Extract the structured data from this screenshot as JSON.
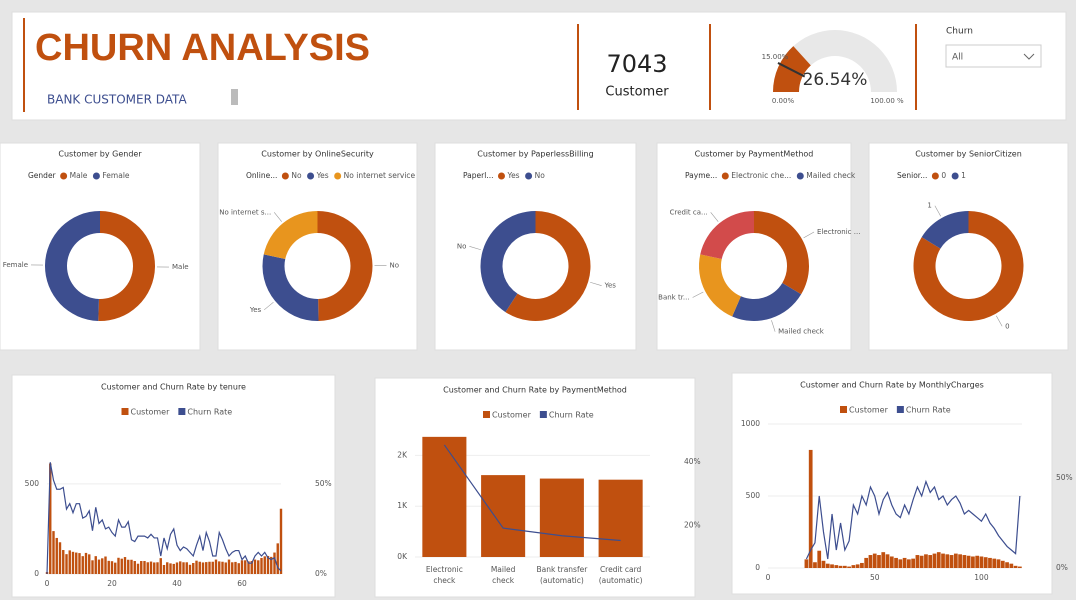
{
  "header": {
    "title": "CHURN ANALYSIS",
    "subtitle": "BANK CUSTOMER DATA",
    "kpi_value": "7043",
    "kpi_label": "Customer",
    "gauge": {
      "value": 26.54,
      "value_label": "26.54%",
      "min": 0,
      "min_label": "0.00%",
      "max": 100,
      "max_label": "100.00 %",
      "target": 15,
      "target_label": "15.00%",
      "color": "#c0500f"
    },
    "slicer": {
      "label": "Churn",
      "selected": "All"
    }
  },
  "chart_data": [
    {
      "type": "pie",
      "title": "Customer by Gender",
      "legend_title": "Gender",
      "legend_entries": [
        "Male",
        "Female"
      ],
      "categories": [
        "Male",
        "Female"
      ],
      "values": [
        50.5,
        49.5
      ],
      "colors": [
        "#c0500f",
        "#3d4e8f"
      ]
    },
    {
      "type": "pie",
      "title": "Customer by OnlineSecurity",
      "legend_title": "Online...",
      "legend_entries": [
        "No",
        "Yes",
        "No internet service"
      ],
      "categories": [
        "No",
        "Yes",
        "No internet s..."
      ],
      "values": [
        49.7,
        28.7,
        21.6
      ],
      "colors": [
        "#c0500f",
        "#3d4e8f",
        "#e8951e"
      ]
    },
    {
      "type": "pie",
      "title": "Customer by PaperlessBilling",
      "legend_title": "Paperl...",
      "legend_entries": [
        "Yes",
        "No"
      ],
      "categories": [
        "Yes",
        "No"
      ],
      "values": [
        59.2,
        40.8
      ],
      "colors": [
        "#c0500f",
        "#3d4e8f"
      ]
    },
    {
      "type": "pie",
      "title": "Customer by PaymentMethod",
      "legend_title": "Payme...",
      "legend_entries": [
        "Electronic che...",
        "Mailed check"
      ],
      "categories": [
        "Electronic ...",
        "Mailed check",
        "Bank tr...",
        "Credit ca..."
      ],
      "values": [
        33.6,
        22.9,
        21.9,
        21.6
      ],
      "colors": [
        "#c0500f",
        "#3d4e8f",
        "#e8951e",
        "#d24b4b"
      ]
    },
    {
      "type": "pie",
      "title": "Customer by SeniorCitizen",
      "legend_title": "Senior...",
      "legend_entries": [
        "0",
        "1"
      ],
      "categories": [
        "0",
        "1"
      ],
      "values": [
        83.8,
        16.2
      ],
      "colors": [
        "#c0500f",
        "#3d4e8f"
      ]
    },
    {
      "type": "combo",
      "title": "Customer and Churn Rate by tenure",
      "x": [
        0,
        1,
        2,
        3,
        4,
        5,
        6,
        7,
        8,
        9,
        10,
        11,
        12,
        13,
        14,
        15,
        16,
        17,
        18,
        19,
        20,
        21,
        22,
        23,
        24,
        25,
        26,
        27,
        28,
        29,
        30,
        31,
        32,
        33,
        34,
        35,
        36,
        37,
        38,
        39,
        40,
        41,
        42,
        43,
        44,
        45,
        46,
        47,
        48,
        49,
        50,
        51,
        52,
        53,
        54,
        55,
        56,
        57,
        58,
        59,
        60,
        61,
        62,
        63,
        64,
        65,
        66,
        67,
        68,
        69,
        70,
        71,
        72
      ],
      "series": [
        {
          "name": "Customer",
          "color": "#c0500f",
          "kind": "bar",
          "values": [
            11,
            613,
            238,
            200,
            176,
            133,
            110,
            131,
            123,
            119,
            116,
            99,
            117,
            109,
            76,
            99,
            80,
            87,
            97,
            73,
            71,
            63,
            90,
            85,
            94,
            79,
            79,
            72,
            57,
            72,
            72,
            65,
            69,
            64,
            65,
            88,
            50,
            65,
            59,
            56,
            64,
            70,
            65,
            65,
            51,
            61,
            74,
            68,
            64,
            66,
            68,
            68,
            80,
            70,
            68,
            64,
            80,
            65,
            67,
            60,
            76,
            76,
            70,
            72,
            80,
            76,
            89,
            98,
            100,
            95,
            119,
            170,
            362
          ]
        },
        {
          "name": "Churn Rate",
          "color": "#3d4e8f",
          "kind": "line",
          "axis": "y2",
          "values": [
            0,
            62,
            52,
            47,
            47,
            48,
            36,
            39,
            34,
            39,
            39,
            31,
            32,
            35,
            24,
            37,
            28,
            30,
            25,
            26,
            23,
            21,
            30,
            26,
            26,
            29,
            19,
            18,
            21,
            21,
            21,
            20,
            22,
            20,
            20,
            10,
            20,
            14,
            22,
            25,
            16,
            13,
            15,
            14,
            12,
            10,
            16,
            21,
            13,
            23,
            18,
            10,
            10,
            23,
            19,
            14,
            10,
            12,
            13,
            13,
            8,
            10,
            6,
            6,
            10,
            12,
            10,
            12,
            9,
            8,
            9,
            3.5,
            1.7
          ]
        }
      ],
      "xlim": [
        0,
        72
      ],
      "xticks": [
        0,
        20,
        40,
        60
      ],
      "ylim": [
        0,
        660
      ],
      "yticks": [
        0,
        500
      ],
      "y2lim": [
        0,
        66
      ],
      "y2ticks": [
        {
          "value": 0,
          "label": "0%"
        },
        {
          "value": 50,
          "label": "50%"
        }
      ]
    },
    {
      "type": "combo",
      "title": "Customer and Churn Rate by PaymentMethod",
      "categories": [
        "Electronic check",
        "Mailed check",
        "Bank transfer (automatic)",
        "Credit card (automatic)"
      ],
      "series": [
        {
          "name": "Customer",
          "color": "#c0500f",
          "kind": "bar",
          "values": [
            2365,
            1612,
            1544,
            1522
          ]
        },
        {
          "name": "Churn Rate",
          "color": "#3d4e8f",
          "kind": "line",
          "axis": "y2",
          "values": [
            45.3,
            19.1,
            16.7,
            15.2
          ]
        }
      ],
      "ylim": [
        0,
        2500
      ],
      "yticks": [
        {
          "value": 0,
          "label": "0K"
        },
        {
          "value": 1000,
          "label": "1K"
        },
        {
          "value": 2000,
          "label": "2K"
        }
      ],
      "y2lim": [
        10,
        50
      ],
      "y2ticks": [
        {
          "value": 20,
          "label": "20%"
        },
        {
          "value": 40,
          "label": "40%"
        }
      ]
    },
    {
      "type": "combo",
      "title": "Customer and Churn Rate by MonthlyCharges",
      "x": [
        18,
        20,
        22,
        24,
        26,
        28,
        30,
        32,
        34,
        36,
        38,
        40,
        42,
        44,
        46,
        48,
        50,
        52,
        54,
        56,
        58,
        60,
        62,
        64,
        66,
        68,
        70,
        72,
        74,
        76,
        78,
        80,
        82,
        84,
        86,
        88,
        90,
        92,
        94,
        96,
        98,
        100,
        102,
        104,
        106,
        108,
        110,
        112,
        114,
        116,
        118
      ],
      "series": [
        {
          "name": "Customer",
          "color": "#c0500f",
          "kind": "bar",
          "values": [
            60,
            820,
            40,
            120,
            50,
            30,
            25,
            20,
            15,
            15,
            10,
            20,
            25,
            35,
            70,
            90,
            100,
            90,
            110,
            95,
            80,
            70,
            60,
            70,
            60,
            65,
            90,
            85,
            95,
            90,
            100,
            110,
            100,
            95,
            90,
            100,
            95,
            90,
            85,
            80,
            85,
            80,
            75,
            70,
            65,
            60,
            50,
            40,
            30,
            15,
            10
          ]
        },
        {
          "name": "Churn Rate",
          "color": "#3d4e8f",
          "kind": "line",
          "axis": "y2",
          "values": [
            5,
            10,
            14,
            40,
            20,
            5,
            30,
            10,
            25,
            10,
            15,
            35,
            30,
            40,
            35,
            45,
            40,
            30,
            38,
            42,
            35,
            30,
            28,
            35,
            30,
            38,
            45,
            40,
            48,
            42,
            45,
            38,
            40,
            35,
            38,
            40,
            36,
            30,
            32,
            30,
            28,
            26,
            30,
            25,
            22,
            18,
            15,
            12,
            10,
            8,
            40
          ]
        }
      ],
      "xlim": [
        0,
        119
      ],
      "xticks": [
        0,
        50,
        100
      ],
      "ylim": [
        0,
        1000
      ],
      "yticks": [
        0,
        500,
        1000
      ],
      "y2lim": [
        0,
        80
      ],
      "y2ticks": [
        {
          "value": 0,
          "label": "0%"
        },
        {
          "value": 50,
          "label": "50%"
        }
      ]
    }
  ]
}
